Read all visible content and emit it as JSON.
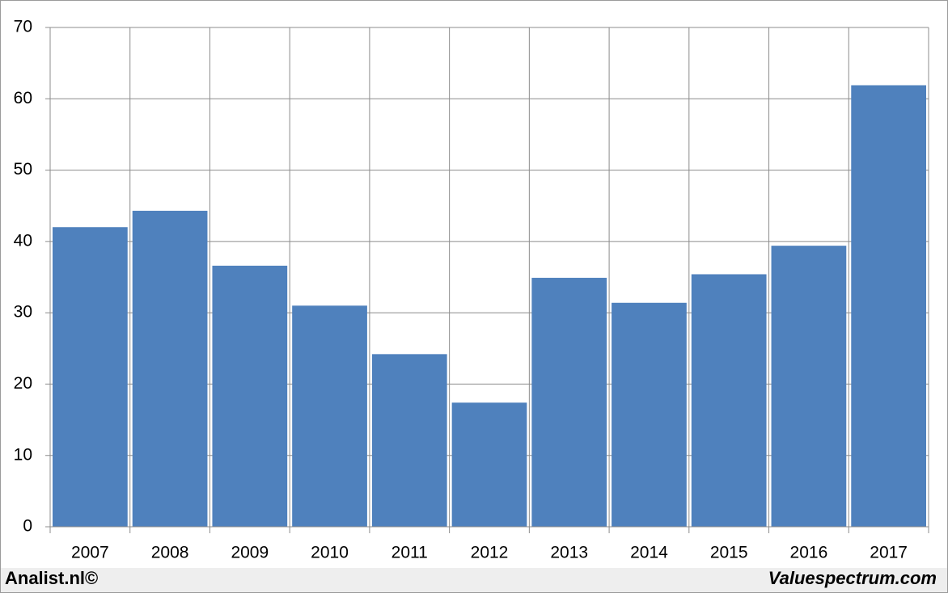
{
  "chart_data": {
    "type": "bar",
    "categories": [
      "2007",
      "2008",
      "2009",
      "2010",
      "2011",
      "2012",
      "2013",
      "2014",
      "2015",
      "2016",
      "2017"
    ],
    "values": [
      42.0,
      44.3,
      36.6,
      31.0,
      24.2,
      17.4,
      34.9,
      31.4,
      35.4,
      39.4,
      61.9
    ],
    "color": "#4f81bd",
    "ylim": [
      0,
      70
    ],
    "yticks": [
      0,
      10,
      20,
      30,
      40,
      50,
      60,
      70
    ],
    "grid": true,
    "annotations": [
      "Analist.nl©",
      "Valuespectrum.com"
    ]
  }
}
